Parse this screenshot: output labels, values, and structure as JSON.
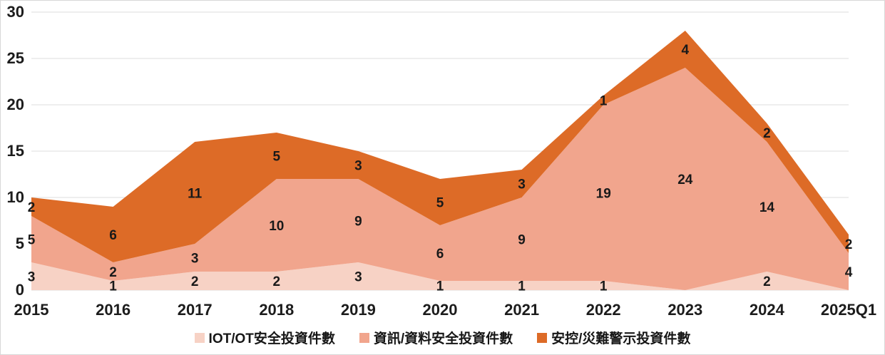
{
  "chart_data": {
    "type": "area",
    "stacked": true,
    "title": "",
    "xlabel": "",
    "ylabel": "",
    "categories": [
      "2015",
      "2016",
      "2017",
      "2018",
      "2019",
      "2020",
      "2021",
      "2022",
      "2023",
      "2024",
      "2025Q1"
    ],
    "series": [
      {
        "name": "IOT/OT安全投資件數",
        "color": "#F7D2C5",
        "values": [
          3,
          1,
          2,
          2,
          3,
          1,
          1,
          1,
          0,
          2,
          0
        ]
      },
      {
        "name": "資訊/資料安全投資件數",
        "color": "#F1A58D",
        "values": [
          5,
          2,
          3,
          10,
          9,
          6,
          9,
          19,
          24,
          14,
          4
        ]
      },
      {
        "name": "安控/災難警示投資件數",
        "color": "#DD6B27",
        "values": [
          2,
          6,
          11,
          5,
          3,
          5,
          3,
          1,
          4,
          2,
          2
        ]
      }
    ],
    "totals": [
      10,
      9,
      16,
      17,
      15,
      12,
      13,
      21,
      28,
      18,
      6
    ],
    "ylim": [
      0,
      30
    ],
    "yticks": [
      0,
      5,
      10,
      15,
      20,
      25,
      30
    ],
    "grid": true,
    "legend_position": "bottom",
    "data_labels": true,
    "hide_zero_labels": true
  },
  "style": {
    "grid_color": "#E3E3E3",
    "background": "#FFFFFF",
    "text_color": "#1C1C1C"
  }
}
